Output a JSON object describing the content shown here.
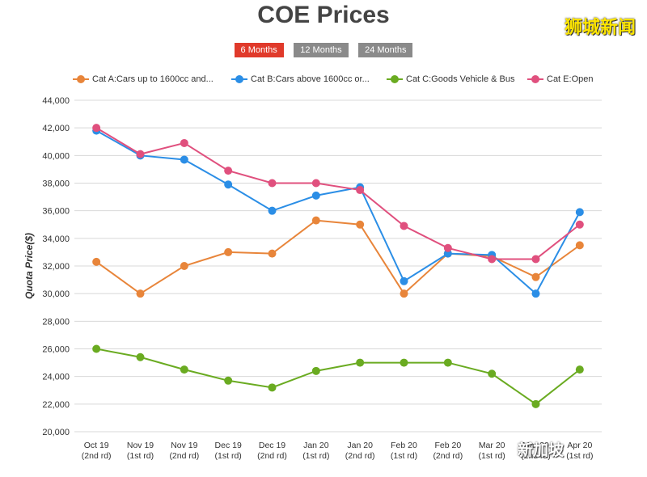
{
  "title": "COE Prices",
  "watermark_top": "狮城新闻",
  "watermark_bottom": "新加坡",
  "tabs": [
    {
      "label": "6 Months",
      "active": true
    },
    {
      "label": "12 Months",
      "active": false
    },
    {
      "label": "24 Months",
      "active": false
    }
  ],
  "chart_data": {
    "type": "line",
    "title": "COE Prices",
    "xlabel": "",
    "ylabel": "Quota Price($)",
    "ylim": [
      20000,
      44000
    ],
    "ytick_step": 2000,
    "grid": true,
    "legend_position": "top",
    "categories": [
      [
        "Oct 19",
        "(2nd rd)"
      ],
      [
        "Nov 19",
        "(1st rd)"
      ],
      [
        "Nov 19",
        "(2nd rd)"
      ],
      [
        "Dec 19",
        "(1st rd)"
      ],
      [
        "Dec 19",
        "(2nd rd)"
      ],
      [
        "Jan 20",
        "(1st rd)"
      ],
      [
        "Jan 20",
        "(2nd rd)"
      ],
      [
        "Feb 20",
        "(1st rd)"
      ],
      [
        "Feb 20",
        "(2nd rd)"
      ],
      [
        "Mar 20",
        "(1st rd)"
      ],
      [
        "Mar 20",
        "(2nd rd)"
      ],
      [
        "Apr 20",
        "(1st rd)"
      ]
    ],
    "series": [
      {
        "name": "Cat A:Cars up to 1600cc and...",
        "color": "#e8853a",
        "values": [
          32300,
          30000,
          32000,
          33000,
          32900,
          35300,
          35000,
          30000,
          32900,
          32700,
          31200,
          33500
        ]
      },
      {
        "name": "Cat B:Cars above 1600cc or...",
        "color": "#2b8ee6",
        "values": [
          41800,
          40000,
          39700,
          37900,
          36000,
          37100,
          37700,
          30900,
          32900,
          32800,
          30000,
          35900
        ]
      },
      {
        "name": "Cat C:Goods Vehicle & Bus",
        "color": "#6aab21",
        "values": [
          26000,
          25400,
          24500,
          23700,
          23200,
          24400,
          25000,
          25000,
          25000,
          24200,
          22000,
          24500
        ]
      },
      {
        "name": "Cat E:Open",
        "color": "#e0507e",
        "values": [
          42000,
          40100,
          40900,
          38900,
          38000,
          38000,
          37500,
          34900,
          33300,
          32500,
          32500,
          35000
        ]
      }
    ]
  }
}
